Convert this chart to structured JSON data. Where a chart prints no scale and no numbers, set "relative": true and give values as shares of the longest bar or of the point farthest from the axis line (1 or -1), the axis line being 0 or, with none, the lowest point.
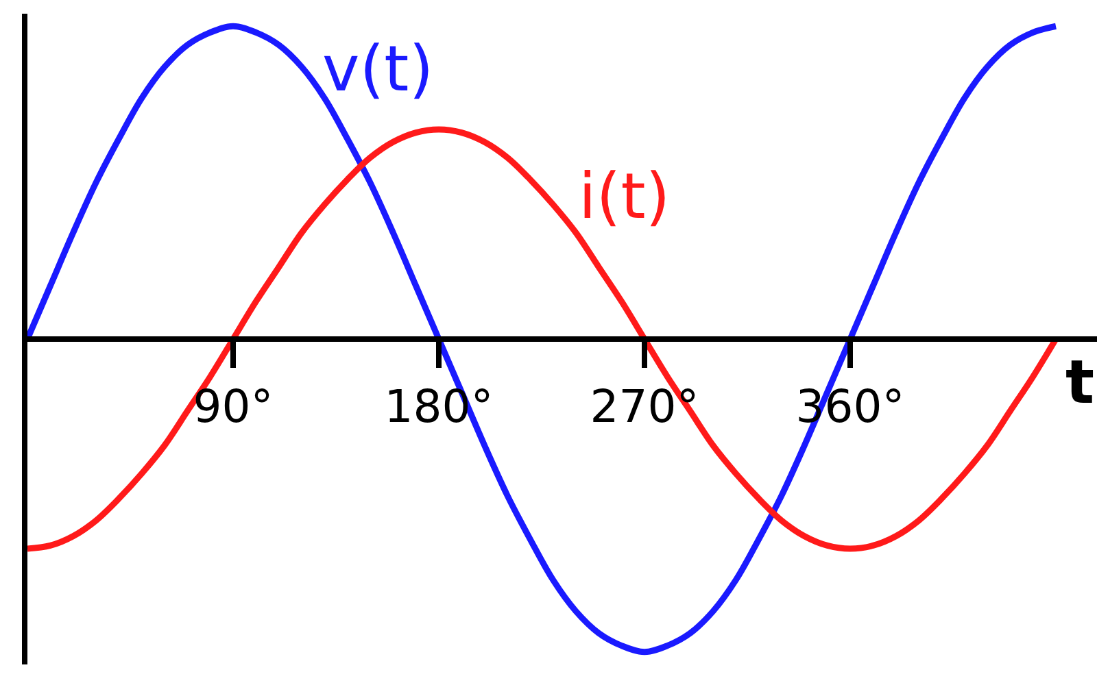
{
  "chart_data": {
    "type": "line",
    "relative": true,
    "xlabel": "t",
    "x": [
      0,
      10,
      20,
      30,
      40,
      50,
      60,
      70,
      80,
      90,
      100,
      110,
      120,
      130,
      140,
      150,
      160,
      170,
      180,
      190,
      200,
      210,
      220,
      230,
      240,
      250,
      260,
      270,
      280,
      290,
      300,
      310,
      320,
      330,
      340,
      350,
      360,
      370,
      380,
      390,
      400,
      410,
      420,
      430,
      440,
      450
    ],
    "series": [
      {
        "name": "v(t)",
        "color": "#1a1aff",
        "values": [
          0,
          0.17,
          0.34,
          0.5,
          0.64,
          0.77,
          0.87,
          0.94,
          0.98,
          1,
          0.98,
          0.94,
          0.87,
          0.77,
          0.64,
          0.5,
          0.34,
          0.17,
          0,
          -0.17,
          -0.34,
          -0.5,
          -0.64,
          -0.77,
          -0.87,
          -0.94,
          -0.98,
          -1,
          -0.98,
          -0.94,
          -0.87,
          -0.77,
          -0.64,
          -0.5,
          -0.34,
          -0.17,
          0,
          0.17,
          0.34,
          0.5,
          0.64,
          0.77,
          0.87,
          0.94,
          0.98,
          1
        ]
      },
      {
        "name": "i(t)",
        "color": "#ff1a1a",
        "values": [
          -0.67,
          -0.66,
          -0.63,
          -0.58,
          -0.51,
          -0.43,
          -0.34,
          -0.23,
          -0.12,
          0,
          0.12,
          0.23,
          0.34,
          0.43,
          0.51,
          0.58,
          0.63,
          0.66,
          0.67,
          0.66,
          0.63,
          0.58,
          0.51,
          0.43,
          0.34,
          0.23,
          0.12,
          0,
          -0.12,
          -0.23,
          -0.34,
          -0.43,
          -0.51,
          -0.58,
          -0.63,
          -0.66,
          -0.67,
          -0.66,
          -0.63,
          -0.58,
          -0.51,
          -0.43,
          -0.34,
          -0.23,
          -0.12,
          0
        ]
      }
    ],
    "xlim": [
      0,
      468
    ],
    "xticks": [
      {
        "value": 90,
        "label": "90°"
      },
      {
        "value": 180,
        "label": "180°"
      },
      {
        "value": 270,
        "label": "270°"
      },
      {
        "value": 360,
        "label": "360°"
      }
    ],
    "tick_labels": "x",
    "line_style": "solid"
  }
}
